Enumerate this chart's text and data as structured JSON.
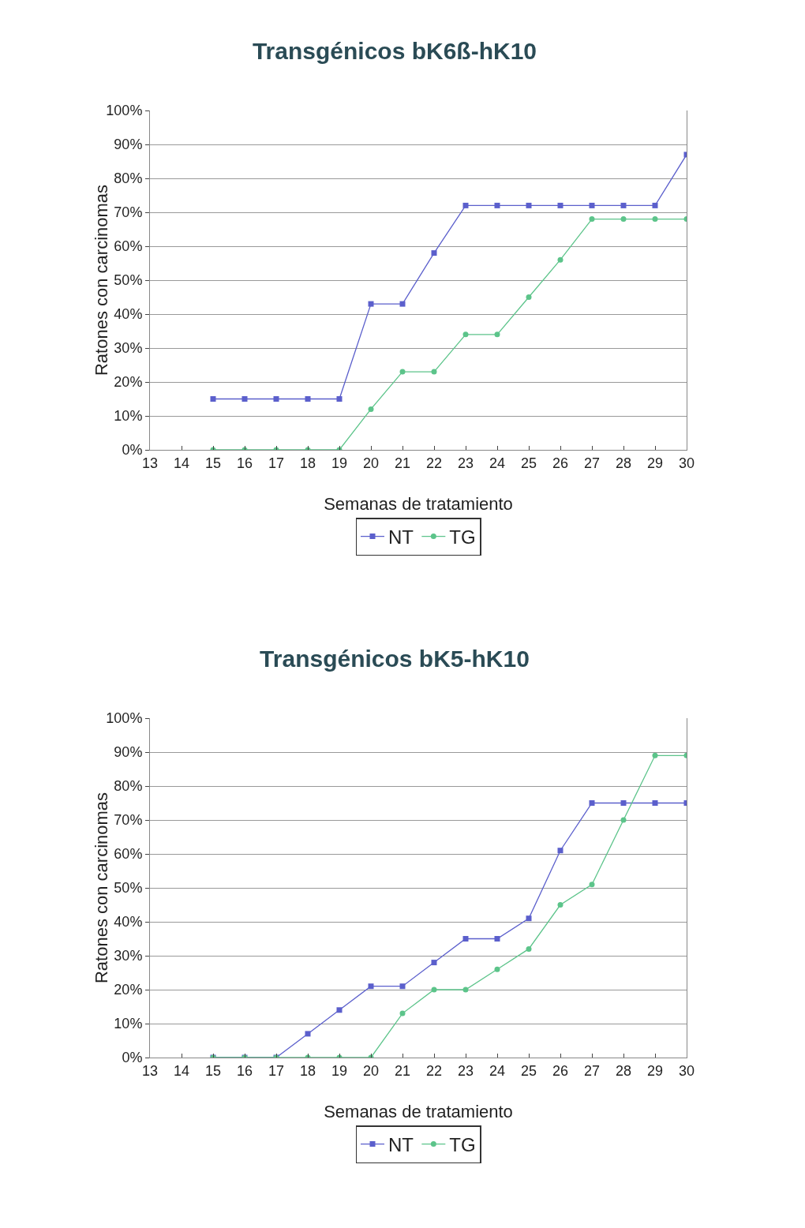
{
  "chart_data": [
    {
      "type": "line",
      "title": "Transgénicos bK6ß-hK10",
      "xlabel": "Semanas de tratamiento",
      "ylabel": "Ratones con carcinomas",
      "x": [
        15,
        16,
        17,
        18,
        19,
        20,
        21,
        22,
        23,
        24,
        25,
        26,
        27,
        28,
        29,
        30
      ],
      "series": [
        {
          "name": "NT",
          "color": "#5b5fcc",
          "marker": "square",
          "values": [
            15,
            15,
            15,
            15,
            15,
            43,
            43,
            58,
            72,
            72,
            72,
            72,
            72,
            72,
            72,
            87
          ]
        },
        {
          "name": "TG",
          "color": "#5cc48a",
          "marker": "circle",
          "values": [
            0,
            0,
            0,
            0,
            0,
            12,
            23,
            23,
            34,
            34,
            45,
            56,
            68,
            68,
            68,
            68
          ]
        }
      ],
      "xlim": [
        13,
        30
      ],
      "xticks": [
        13,
        14,
        15,
        16,
        17,
        18,
        19,
        20,
        21,
        22,
        23,
        24,
        25,
        26,
        27,
        28,
        29,
        30
      ],
      "ylim": [
        0,
        100
      ],
      "yticks": [
        {
          "value": 0,
          "label": "0%"
        },
        {
          "value": 10,
          "label": "10%"
        },
        {
          "value": 20,
          "label": "20%"
        },
        {
          "value": 30,
          "label": "30%"
        },
        {
          "value": 40,
          "label": "40%"
        },
        {
          "value": 50,
          "label": "50%"
        },
        {
          "value": 60,
          "label": "60%"
        },
        {
          "value": 70,
          "label": "70%"
        },
        {
          "value": 80,
          "label": "80%"
        },
        {
          "value": 90,
          "label": "90%"
        },
        {
          "value": 100,
          "label": "100%"
        }
      ],
      "grid": "y",
      "legend": "bottom",
      "line_style": "solid"
    },
    {
      "type": "line",
      "title": "Transgénicos bK5-hK10",
      "xlabel": "Semanas de tratamiento",
      "ylabel": "Ratones con carcinomas",
      "x": [
        15,
        16,
        17,
        18,
        19,
        20,
        21,
        22,
        23,
        24,
        25,
        26,
        27,
        28,
        29,
        30
      ],
      "series": [
        {
          "name": "NT",
          "color": "#5b5fcc",
          "marker": "square",
          "values": [
            0,
            0,
            0,
            7,
            14,
            21,
            21,
            28,
            35,
            35,
            41,
            61,
            75,
            75,
            75,
            75
          ]
        },
        {
          "name": "TG",
          "color": "#5cc48a",
          "marker": "circle",
          "values": [
            0,
            0,
            0,
            0,
            0,
            0,
            13,
            20,
            20,
            26,
            32,
            45,
            51,
            70,
            89,
            89
          ]
        }
      ],
      "xlim": [
        13,
        30
      ],
      "xticks": [
        13,
        14,
        15,
        16,
        17,
        18,
        19,
        20,
        21,
        22,
        23,
        24,
        25,
        26,
        27,
        28,
        29,
        30
      ],
      "ylim": [
        0,
        100
      ],
      "yticks": [
        {
          "value": 0,
          "label": "0%"
        },
        {
          "value": 10,
          "label": "10%"
        },
        {
          "value": 20,
          "label": "20%"
        },
        {
          "value": 30,
          "label": "30%"
        },
        {
          "value": 40,
          "label": "40%"
        },
        {
          "value": 50,
          "label": "50%"
        },
        {
          "value": 60,
          "label": "60%"
        },
        {
          "value": 70,
          "label": "70%"
        },
        {
          "value": 80,
          "label": "80%"
        },
        {
          "value": 90,
          "label": "90%"
        },
        {
          "value": 100,
          "label": "100%"
        }
      ],
      "grid": "y",
      "legend": "bottom",
      "line_style": "solid"
    }
  ]
}
